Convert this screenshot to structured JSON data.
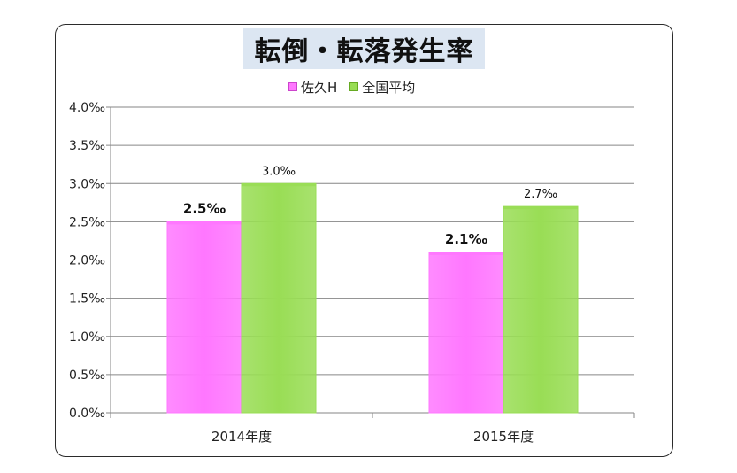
{
  "chart_data": {
    "type": "bar",
    "title": "転倒・転落発生率",
    "categories": [
      "2014年度",
      "2015年度"
    ],
    "series": [
      {
        "name": "佐久H",
        "values": [
          2.5,
          2.1
        ],
        "labels": [
          "2.5‰",
          "2.1‰"
        ],
        "color": "#ff77ff",
        "label_bold": true
      },
      {
        "name": "全国平均",
        "values": [
          3.0,
          2.7
        ],
        "labels": [
          "3.0‰",
          "2.7‰"
        ],
        "color": "#99dd55",
        "label_bold": false
      }
    ],
    "ylim": [
      0,
      4.0
    ],
    "yticks": [
      0.0,
      0.5,
      1.0,
      1.5,
      2.0,
      2.5,
      3.0,
      3.5,
      4.0
    ],
    "ytick_labels": [
      "0.0‰",
      "0.5‰",
      "1.0‰",
      "1.5‰",
      "2.0‰",
      "2.5‰",
      "3.0‰",
      "3.5‰",
      "4.0‰"
    ],
    "xlabel": "",
    "ylabel": "",
    "grid": true,
    "legend_position": "top-center"
  }
}
